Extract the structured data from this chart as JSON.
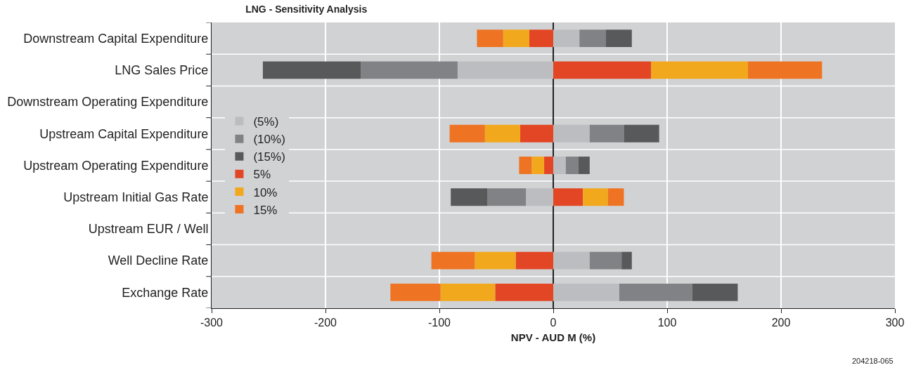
{
  "chart_data": {
    "type": "bar",
    "orientation": "horizontal",
    "stacked": true,
    "title": "LNG - Sensitivity Analysis",
    "xlabel": "NPV - AUD M (%)",
    "categories": [
      "Downstream Capital Expenditure",
      "LNG Sales Price",
      "Downstream Operating Expenditure",
      "Upstream Capital Expenditure",
      "Upstream Operating Expenditure",
      "Upstream Initial Gas Rate",
      "Upstream EUR / Well",
      "Well Decline Rate",
      "Exchange Rate"
    ],
    "series": [
      {
        "name": "(5%)",
        "color": "#bcbdc0",
        "values": [
          23,
          -84,
          null,
          32,
          11,
          -24,
          null,
          32,
          58
        ]
      },
      {
        "name": "(10%)",
        "color": "#818285",
        "values": [
          23,
          -85,
          null,
          30,
          11,
          -34,
          null,
          28,
          64
        ]
      },
      {
        "name": "(15%)",
        "color": "#58595b",
        "values": [
          23,
          -86,
          null,
          31,
          10,
          -32,
          null,
          9,
          40
        ]
      },
      {
        "name": "5%",
        "color": "#e34625",
        "values": [
          -21,
          86,
          null,
          -29,
          -8,
          26,
          null,
          -33,
          -51
        ]
      },
      {
        "name": "10%",
        "color": "#f2a81d",
        "values": [
          -23,
          85,
          null,
          -31,
          -11,
          22,
          null,
          -36,
          -48
        ]
      },
      {
        "name": "15%",
        "color": "#ee7322",
        "values": [
          -23,
          65,
          null,
          -31,
          -11,
          14,
          null,
          -38,
          -44
        ]
      }
    ],
    "xlim": [
      -300,
      300
    ],
    "xticks": [
      -300,
      -200,
      -100,
      0,
      100,
      200,
      300
    ],
    "grid": true,
    "legend": "left",
    "annotations": [
      "204218-065"
    ]
  }
}
